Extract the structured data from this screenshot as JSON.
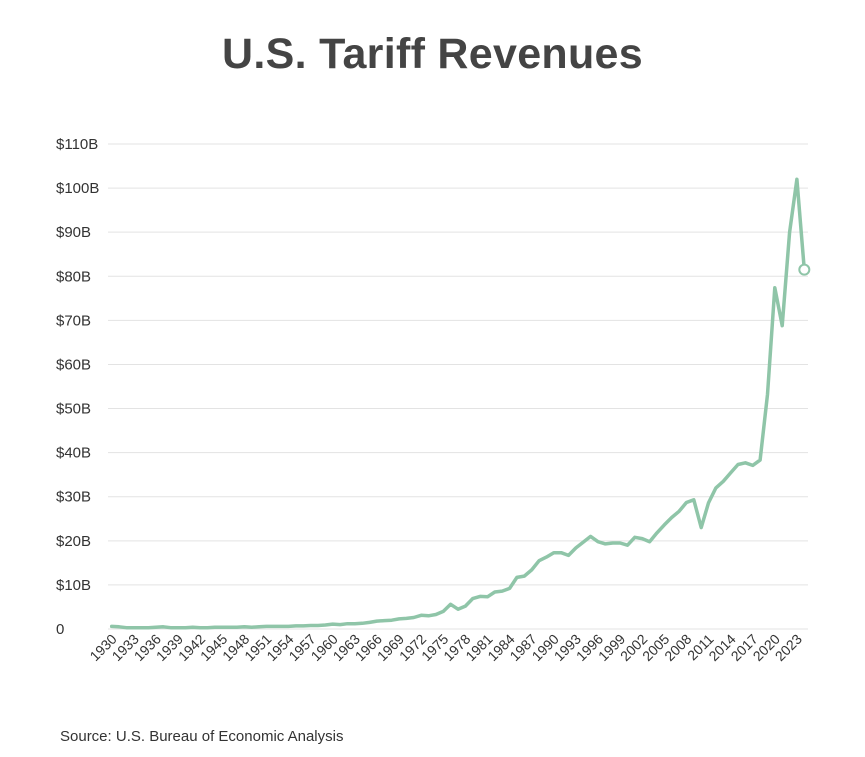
{
  "title": "U.S. Tariff Revenues",
  "source": "Source: U.S. Bureau of Economic Analysis",
  "colors": {
    "line": "#8fc5a8",
    "grid": "#e3e3e3",
    "text": "#444444"
  },
  "chart_data": {
    "type": "line",
    "title": "U.S. Tariff Revenues",
    "xlabel": "",
    "ylabel": "",
    "ylim": [
      0,
      110
    ],
    "yticks": [
      0,
      10,
      20,
      30,
      40,
      50,
      60,
      70,
      80,
      90,
      100,
      110
    ],
    "ytick_labels": [
      "0",
      "$10B",
      "$20B",
      "$30B",
      "$40B",
      "$50B",
      "$60B",
      "$70B",
      "$80B",
      "$90B",
      "$100B",
      "$110B"
    ],
    "xtick_labels": [
      "1930",
      "1933",
      "1936",
      "1939",
      "1942",
      "1945",
      "1948",
      "1951",
      "1954",
      "1957",
      "1960",
      "1963",
      "1966",
      "1969",
      "1972",
      "1975",
      "1978",
      "1981",
      "1984",
      "1987",
      "1990",
      "1993",
      "1996",
      "1999",
      "2002",
      "2005",
      "2008",
      "2011",
      "2014",
      "2017",
      "2020",
      "2023"
    ],
    "grid": true,
    "x": [
      1930,
      1931,
      1932,
      1933,
      1934,
      1935,
      1936,
      1937,
      1938,
      1939,
      1940,
      1941,
      1942,
      1943,
      1944,
      1945,
      1946,
      1947,
      1948,
      1949,
      1950,
      1951,
      1952,
      1953,
      1954,
      1955,
      1956,
      1957,
      1958,
      1959,
      1960,
      1961,
      1962,
      1963,
      1964,
      1965,
      1966,
      1967,
      1968,
      1969,
      1970,
      1971,
      1972,
      1973,
      1974,
      1975,
      1976,
      1977,
      1978,
      1979,
      1980,
      1981,
      1982,
      1983,
      1984,
      1985,
      1986,
      1987,
      1988,
      1989,
      1990,
      1991,
      1992,
      1993,
      1994,
      1995,
      1996,
      1997,
      1998,
      1999,
      2000,
      2001,
      2002,
      2003,
      2004,
      2005,
      2006,
      2007,
      2008,
      2009,
      2010,
      2011,
      2012,
      2013,
      2014,
      2015,
      2016,
      2017,
      2018,
      2019,
      2020,
      2021,
      2022,
      2023,
      2024
    ],
    "values": [
      0.6,
      0.5,
      0.3,
      0.3,
      0.3,
      0.3,
      0.4,
      0.5,
      0.3,
      0.3,
      0.3,
      0.4,
      0.3,
      0.3,
      0.4,
      0.4,
      0.4,
      0.4,
      0.5,
      0.4,
      0.5,
      0.6,
      0.6,
      0.6,
      0.6,
      0.7,
      0.7,
      0.8,
      0.8,
      0.9,
      1.1,
      1.0,
      1.2,
      1.2,
      1.3,
      1.5,
      1.8,
      1.9,
      2.0,
      2.3,
      2.4,
      2.6,
      3.1,
      3.0,
      3.3,
      4.0,
      5.6,
      4.5,
      5.2,
      6.9,
      7.4,
      7.3,
      8.4,
      8.6,
      9.2,
      11.7,
      12.0,
      13.4,
      15.5,
      16.3,
      17.3,
      17.3,
      16.7,
      18.4,
      19.7,
      21.0,
      19.8,
      19.3,
      19.5,
      19.5,
      19.0,
      20.8,
      20.5,
      19.8,
      21.8,
      23.6,
      25.3,
      26.7,
      28.7,
      29.3,
      23.0,
      28.6,
      32.0,
      33.5,
      35.4,
      37.3,
      37.7,
      37.1,
      38.3,
      53.2,
      77.4,
      68.8,
      90.0,
      102.0,
      81.5
    ],
    "series": [
      {
        "values_ref": "values",
        "last_point_open_marker": true
      }
    ]
  }
}
